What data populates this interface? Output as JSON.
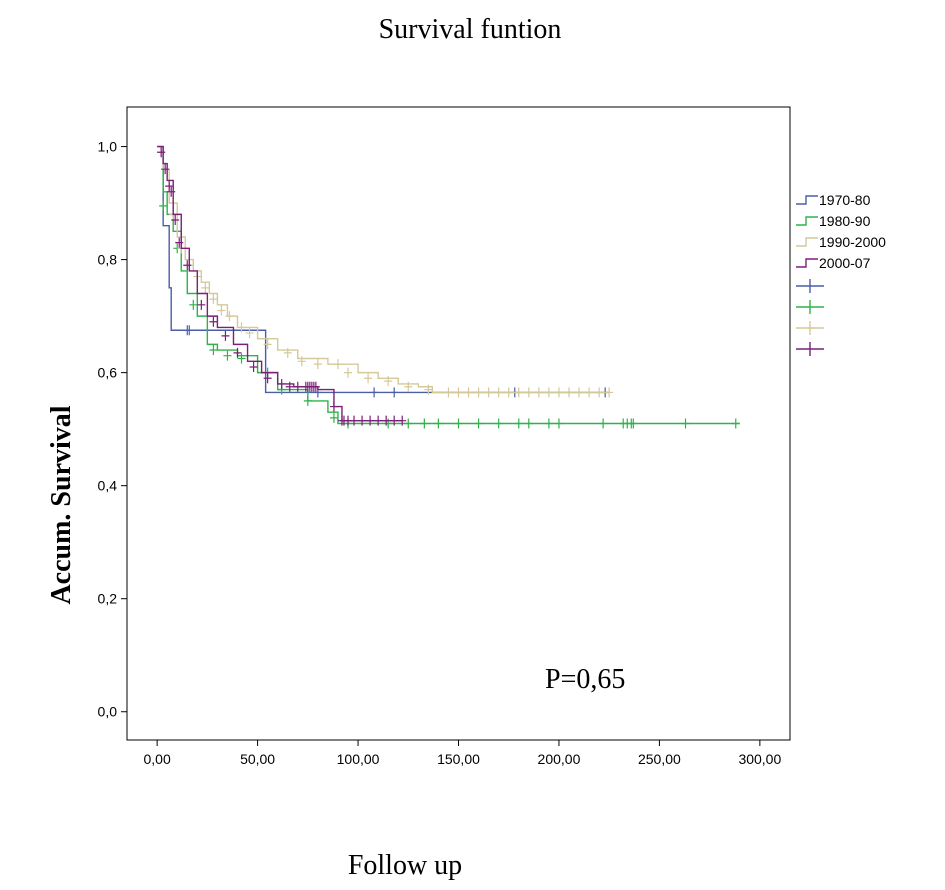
{
  "chart_data": {
    "type": "line",
    "subtype": "kaplan-meier step",
    "title": "Survival funtion",
    "xlabel": "Follow up",
    "ylabel": "Accum. Survival",
    "xlim": [
      -15,
      315
    ],
    "ylim": [
      -0.05,
      1.07
    ],
    "xticks": [
      0,
      50,
      100,
      150,
      200,
      250,
      300
    ],
    "xtick_labels": [
      "0,00",
      "50,00",
      "100,00",
      "150,00",
      "200,00",
      "250,00",
      "300,00"
    ],
    "yticks": [
      0.0,
      0.2,
      0.4,
      0.6,
      0.8,
      1.0
    ],
    "ytick_labels": [
      "0,0",
      "0,2",
      "0,4",
      "0,6",
      "0,8",
      "1,0"
    ],
    "grid": false,
    "legend_position": "right",
    "annotation": "P=0,65",
    "series": [
      {
        "name": "1970-80",
        "color": "#4a5ea8",
        "x": [
          0,
          3,
          6,
          7,
          54,
          88,
          225
        ],
        "y": [
          1.0,
          0.86,
          0.75,
          0.675,
          0.565,
          0.565,
          0.565
        ],
        "censored_x": [
          15,
          16,
          80,
          108,
          118,
          178,
          223
        ],
        "censored_y": [
          0.675,
          0.675,
          0.565,
          0.565,
          0.565,
          0.565,
          0.565
        ]
      },
      {
        "name": "1980-90",
        "color": "#2fb24a",
        "x": [
          0,
          3,
          5,
          8,
          12,
          15,
          20,
          25,
          30,
          40,
          50,
          60,
          75,
          85,
          90,
          290
        ],
        "y": [
          1.0,
          0.92,
          0.88,
          0.85,
          0.78,
          0.74,
          0.7,
          0.65,
          0.64,
          0.63,
          0.6,
          0.57,
          0.55,
          0.53,
          0.51,
          0.51
        ],
        "censored_x": [
          3,
          10,
          18,
          28,
          35,
          42,
          55,
          62,
          75,
          88,
          95,
          115,
          125,
          133,
          140,
          150,
          160,
          170,
          180,
          185,
          195,
          200,
          222,
          232,
          234,
          236,
          237,
          263,
          288
        ],
        "censored_y": [
          0.895,
          0.82,
          0.72,
          0.64,
          0.63,
          0.625,
          0.6,
          0.57,
          0.55,
          0.52,
          0.51,
          0.51,
          0.51,
          0.51,
          0.51,
          0.51,
          0.51,
          0.51,
          0.51,
          0.51,
          0.51,
          0.51,
          0.51,
          0.51,
          0.51,
          0.51,
          0.51,
          0.51,
          0.51
        ]
      },
      {
        "name": "1990-2000",
        "color": "#d4c99a",
        "x": [
          0,
          3,
          6,
          10,
          14,
          18,
          22,
          26,
          30,
          35,
          40,
          50,
          60,
          70,
          85,
          100,
          110,
          120,
          130,
          137,
          225
        ],
        "y": [
          1.0,
          0.96,
          0.9,
          0.84,
          0.8,
          0.78,
          0.76,
          0.74,
          0.72,
          0.7,
          0.68,
          0.66,
          0.64,
          0.625,
          0.615,
          0.6,
          0.59,
          0.58,
          0.575,
          0.565,
          0.565
        ],
        "censored_x": [
          2,
          8,
          12,
          16,
          20,
          24,
          28,
          32,
          36,
          42,
          46,
          55,
          65,
          72,
          80,
          90,
          95,
          105,
          115,
          125,
          135,
          145,
          150,
          155,
          160,
          165,
          170,
          175,
          180,
          185,
          190,
          195,
          200,
          205,
          210,
          215,
          220,
          225
        ],
        "censored_y": [
          0.99,
          0.88,
          0.82,
          0.79,
          0.77,
          0.75,
          0.73,
          0.71,
          0.7,
          0.68,
          0.67,
          0.65,
          0.635,
          0.62,
          0.615,
          0.615,
          0.6,
          0.59,
          0.585,
          0.575,
          0.57,
          0.565,
          0.565,
          0.565,
          0.565,
          0.565,
          0.565,
          0.565,
          0.565,
          0.565,
          0.565,
          0.565,
          0.565,
          0.565,
          0.565,
          0.565,
          0.565,
          0.565
        ]
      },
      {
        "name": "2000-07",
        "color": "#7b1f78",
        "x": [
          0,
          3,
          5,
          8,
          12,
          16,
          20,
          25,
          30,
          38,
          45,
          52,
          60,
          68,
          80,
          88,
          92,
          122
        ],
        "y": [
          1.0,
          0.97,
          0.94,
          0.88,
          0.82,
          0.78,
          0.74,
          0.7,
          0.68,
          0.65,
          0.62,
          0.6,
          0.58,
          0.575,
          0.57,
          0.54,
          0.515,
          0.515
        ],
        "censored_x": [
          2,
          4,
          6,
          7,
          9,
          11,
          15,
          22,
          28,
          34,
          40,
          48,
          55,
          62,
          66,
          70,
          74,
          75,
          76,
          77,
          78,
          79,
          88,
          92,
          93,
          95,
          98,
          102,
          106,
          110,
          114,
          118,
          122
        ],
        "censored_y": [
          0.99,
          0.96,
          0.93,
          0.92,
          0.87,
          0.83,
          0.79,
          0.72,
          0.69,
          0.665,
          0.635,
          0.61,
          0.59,
          0.58,
          0.575,
          0.575,
          0.575,
          0.575,
          0.575,
          0.575,
          0.575,
          0.575,
          0.54,
          0.515,
          0.515,
          0.515,
          0.515,
          0.515,
          0.515,
          0.515,
          0.515,
          0.515,
          0.515
        ]
      }
    ]
  }
}
